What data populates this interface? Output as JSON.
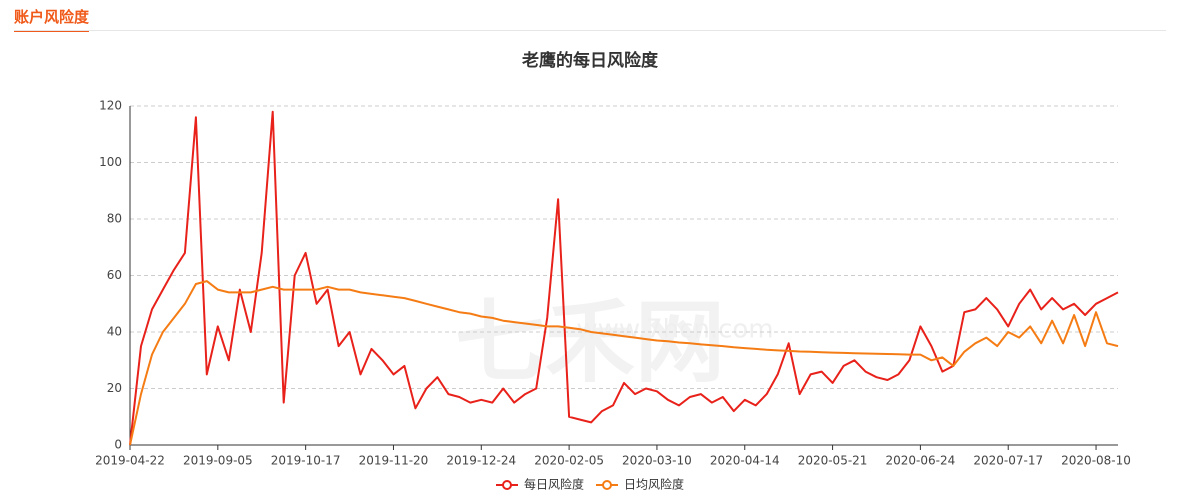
{
  "header": {
    "title": "账户风险度"
  },
  "watermark": {
    "brand": "七禾网",
    "site": "www.7hcn.com"
  },
  "chart_data": {
    "type": "line",
    "title": "老鹰的每日风险度",
    "categories": [
      "2019-04-22",
      null,
      null,
      null,
      null,
      null,
      null,
      null,
      "2019-09-05",
      null,
      null,
      null,
      null,
      null,
      null,
      null,
      "2019-10-17",
      null,
      null,
      null,
      null,
      null,
      null,
      null,
      "2019-11-20",
      null,
      null,
      null,
      null,
      null,
      null,
      null,
      "2019-12-24",
      null,
      null,
      null,
      null,
      null,
      null,
      null,
      "2020-02-05",
      null,
      null,
      null,
      null,
      null,
      null,
      null,
      "2020-03-10",
      null,
      null,
      null,
      null,
      null,
      null,
      null,
      "2020-04-14",
      null,
      null,
      null,
      null,
      null,
      null,
      null,
      "2020-05-21",
      null,
      null,
      null,
      null,
      null,
      null,
      null,
      "2020-06-24",
      null,
      null,
      null,
      null,
      null,
      null,
      null,
      "2020-07-17",
      null,
      null,
      null,
      null,
      null,
      null,
      null,
      "2020-08-10",
      null,
      null
    ],
    "series": [
      {
        "name": "每日风险度",
        "color": "#e8211a",
        "values": [
          0,
          35,
          48,
          55,
          62,
          68,
          116,
          25,
          42,
          30,
          55,
          40,
          68,
          118,
          15,
          60,
          68,
          50,
          55,
          35,
          40,
          25,
          34,
          30,
          25,
          28,
          13,
          20,
          24,
          18,
          17,
          15,
          16,
          15,
          20,
          15,
          18,
          20,
          45,
          87,
          10,
          9,
          8,
          12,
          14,
          22,
          18,
          20,
          19,
          16,
          14,
          17,
          18,
          15,
          17,
          12,
          16,
          14,
          18,
          25,
          36,
          18,
          25,
          26,
          22,
          28,
          30,
          26,
          24,
          23,
          25,
          30,
          42,
          35,
          26,
          28,
          47,
          48,
          52,
          48,
          42,
          50,
          55,
          48,
          52,
          48,
          50,
          46,
          50,
          52,
          54
        ]
      },
      {
        "name": "日均风险度",
        "color": "#f57c14",
        "values": [
          0,
          18,
          32,
          40,
          45,
          50,
          57,
          58,
          55,
          54,
          54,
          54,
          55,
          56,
          55,
          55,
          55,
          55,
          56,
          55,
          55,
          54,
          53.5,
          53,
          52.5,
          52,
          51,
          50,
          49,
          48,
          47,
          46.5,
          45.5,
          45,
          44,
          43.5,
          43,
          42.5,
          42,
          42,
          41.5,
          41,
          40,
          39.5,
          39,
          38.5,
          38,
          37.5,
          37,
          36.7,
          36.3,
          36,
          35.6,
          35.3,
          35,
          34.6,
          34.3,
          34,
          33.7,
          33.5,
          33.3,
          33.1,
          33,
          32.8,
          32.7,
          32.6,
          32.5,
          32.4,
          32.3,
          32.2,
          32.1,
          32,
          32,
          30,
          31,
          28,
          33,
          36,
          38,
          35,
          40,
          38,
          42,
          36,
          44,
          36,
          46,
          35,
          47,
          36,
          35
        ]
      }
    ],
    "ylim": [
      0,
      120
    ],
    "yticks": [
      0,
      20,
      40,
      60,
      80,
      100,
      120
    ],
    "grid": true
  }
}
